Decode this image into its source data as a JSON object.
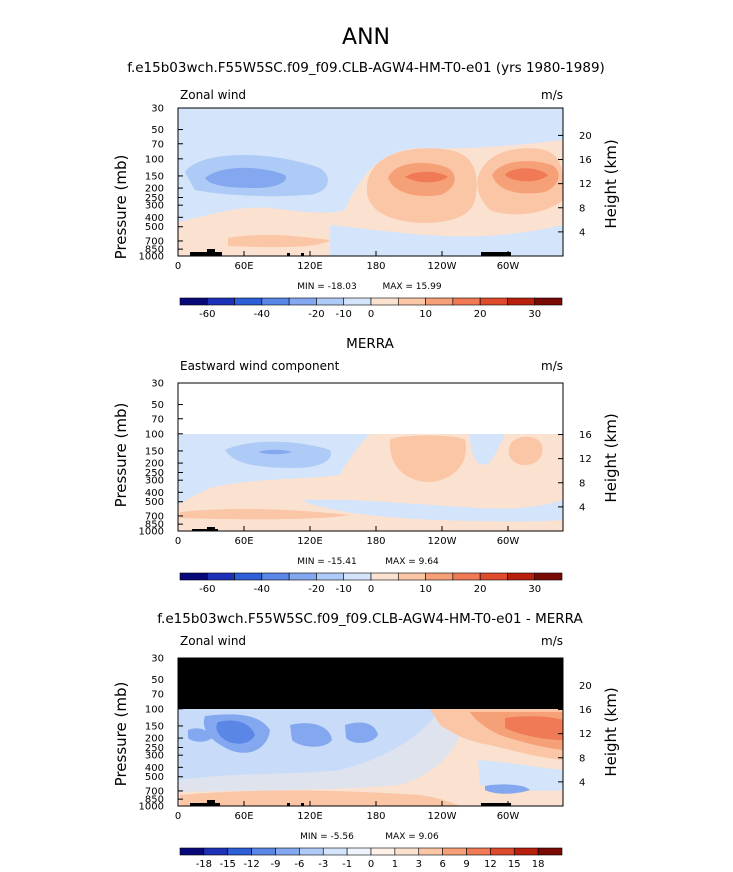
{
  "title": "ANN",
  "chart_data": [
    {
      "type": "heatmap",
      "title": "f.e15b03wch.F55W5SC.f09_f09.CLB-AGW4-HM-T0-e01 (yrs 1980-1989)",
      "variable": "Zonal wind",
      "units": "m/s",
      "ylabel": "Pressure (mb)",
      "ylabel_right": "Height (km)",
      "x_ticks": [
        "0",
        "60E",
        "120E",
        "180",
        "120W",
        "60W"
      ],
      "y_ticks": [
        "30",
        "50",
        "70",
        "100",
        "150",
        "200",
        "250",
        "300",
        "400",
        "500",
        "700",
        "850",
        "1000"
      ],
      "y_ticks_right": [
        "20",
        "16",
        "12",
        "8",
        "4"
      ],
      "min_label": "MIN = -18.03",
      "max_label": "MAX = 15.99",
      "min": -18.03,
      "max": 15.99,
      "colorbar_labels": [
        "-60",
        "-40",
        "-20",
        "-10",
        "0",
        "10",
        "20",
        "30"
      ],
      "colorbar_colors": [
        "#08087a",
        "#1c30b8",
        "#2e5fd6",
        "#5a86e6",
        "#84a8f0",
        "#aecaf6",
        "#d3e4fb",
        "#fbe1cf",
        "#fac6a6",
        "#f6a078",
        "#ef7a55",
        "#de4a2c",
        "#b8200e",
        "#7a0a04"
      ]
    },
    {
      "type": "heatmap",
      "title": "MERRA",
      "variable": "Eastward wind component",
      "units": "m/s",
      "ylabel": "Pressure (mb)",
      "ylabel_right": "Height (km)",
      "x_ticks": [
        "0",
        "60E",
        "120E",
        "180",
        "120W",
        "60W"
      ],
      "y_ticks": [
        "30",
        "50",
        "70",
        "100",
        "150",
        "200",
        "250",
        "300",
        "400",
        "500",
        "700",
        "850",
        "1000"
      ],
      "y_ticks_right": [
        "16",
        "12",
        "8",
        "4"
      ],
      "min_label": "MIN = -15.41",
      "max_label": "MAX = 9.64",
      "min": -15.41,
      "max": 9.64,
      "colorbar_labels": [
        "-60",
        "-40",
        "-20",
        "-10",
        "0",
        "10",
        "20",
        "30"
      ],
      "colorbar_colors": [
        "#08087a",
        "#1c30b8",
        "#2e5fd6",
        "#5a86e6",
        "#84a8f0",
        "#aecaf6",
        "#d3e4fb",
        "#fbe1cf",
        "#fac6a6",
        "#f6a078",
        "#ef7a55",
        "#de4a2c",
        "#b8200e",
        "#7a0a04"
      ]
    },
    {
      "type": "heatmap",
      "title": "f.e15b03wch.F55W5SC.f09_f09.CLB-AGW4-HM-T0-e01 - MERRA",
      "variable": "Zonal wind",
      "units": "m/s",
      "ylabel": "Pressure (mb)",
      "ylabel_right": "Height (km)",
      "x_ticks": [
        "0",
        "60E",
        "120E",
        "180",
        "120W",
        "60W"
      ],
      "y_ticks": [
        "30",
        "50",
        "70",
        "100",
        "150",
        "200",
        "250",
        "300",
        "400",
        "500",
        "700",
        "850",
        "1000"
      ],
      "y_ticks_right": [
        "20",
        "16",
        "12",
        "8",
        "4"
      ],
      "min_label": "MIN = -5.56",
      "max_label": "MAX = 9.06",
      "min": -5.56,
      "max": 9.06,
      "colorbar_labels": [
        "-18",
        "-15",
        "-12",
        "-9",
        "-6",
        "-3",
        "-1",
        "0",
        "1",
        "3",
        "6",
        "9",
        "12",
        "15",
        "18"
      ],
      "colorbar_colors": [
        "#08087a",
        "#1c30b8",
        "#2e5fd6",
        "#5a86e6",
        "#84a8f0",
        "#aecaf6",
        "#d3e4fb",
        "#eef4fd",
        "#fdf1e8",
        "#fbe1cf",
        "#fac6a6",
        "#f6a078",
        "#ef7a55",
        "#de4a2c",
        "#b8200e",
        "#7a0a04"
      ]
    }
  ]
}
